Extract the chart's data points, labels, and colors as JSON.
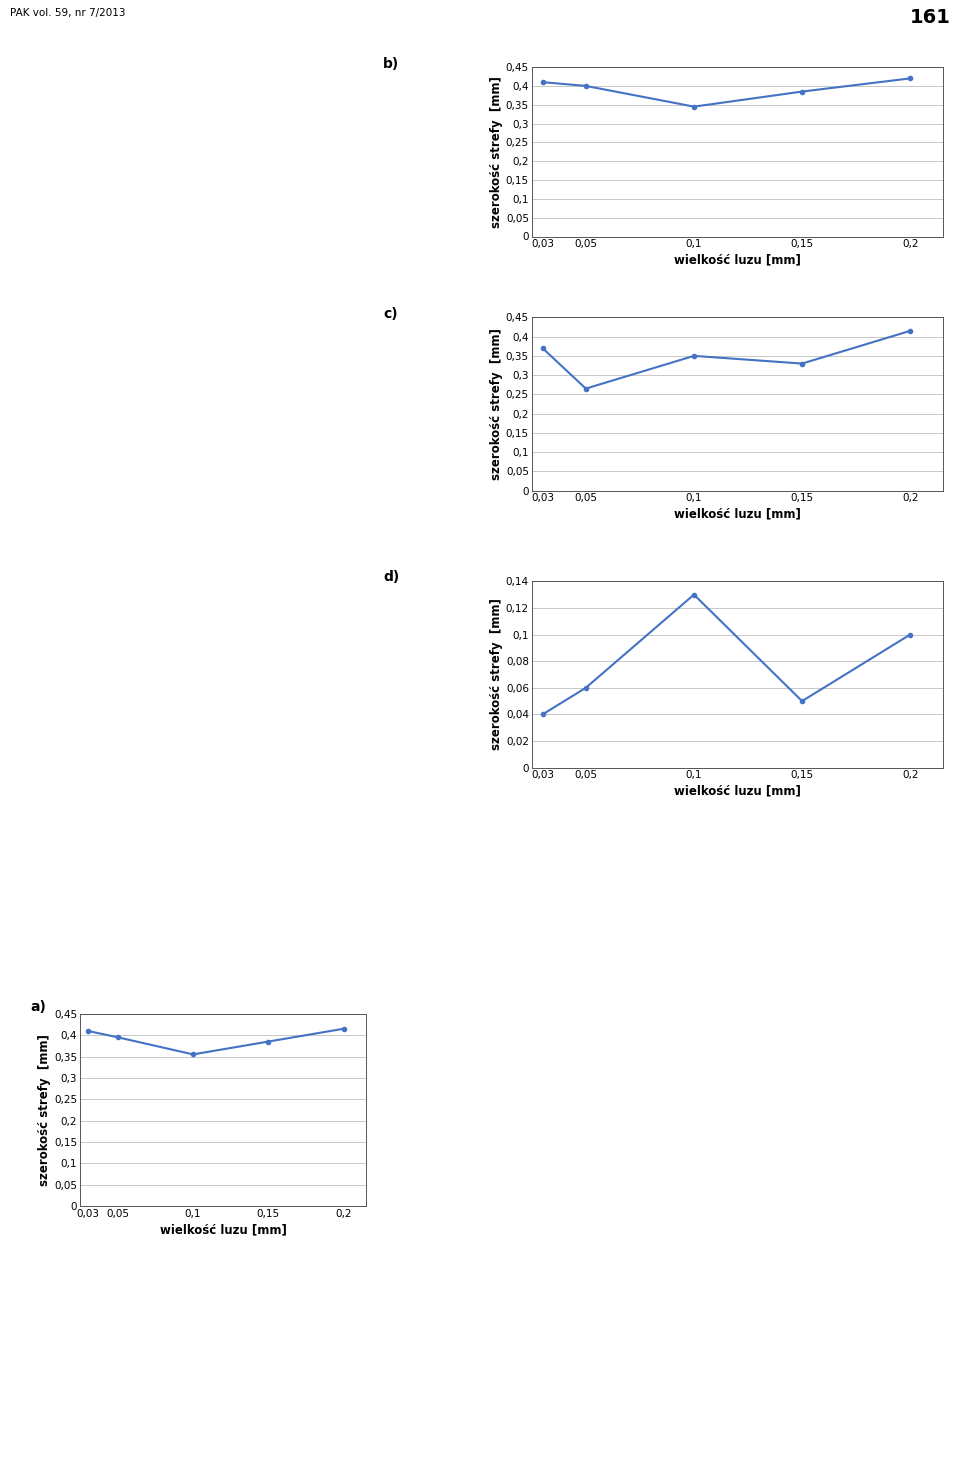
{
  "x_values": [
    0.03,
    0.05,
    0.1,
    0.15,
    0.2
  ],
  "chart_a": {
    "label": "a)",
    "y_values": [
      0.41,
      0.395,
      0.355,
      0.385,
      0.415
    ],
    "ylim": [
      0,
      0.45
    ],
    "yticks": [
      0,
      0.05,
      0.1,
      0.15,
      0.2,
      0.25,
      0.3,
      0.35,
      0.4,
      0.45
    ],
    "ylabel": "szerokość strefy  [mm]",
    "xlabel": "wielkość luzu [mm]"
  },
  "chart_b": {
    "label": "b)",
    "y_values": [
      0.41,
      0.4,
      0.345,
      0.385,
      0.42
    ],
    "ylim": [
      0,
      0.45
    ],
    "yticks": [
      0,
      0.05,
      0.1,
      0.15,
      0.2,
      0.25,
      0.3,
      0.35,
      0.4,
      0.45
    ],
    "ylabel": "szerokość strefy  [mm]",
    "xlabel": "wielkość luzu [mm]"
  },
  "chart_c": {
    "label": "c)",
    "y_values": [
      0.37,
      0.265,
      0.35,
      0.33,
      0.415
    ],
    "ylim": [
      0,
      0.45
    ],
    "yticks": [
      0,
      0.05,
      0.1,
      0.15,
      0.2,
      0.25,
      0.3,
      0.35,
      0.4,
      0.45
    ],
    "ylabel": "szerokość strefy  [mm]",
    "xlabel": "wielkość luzu [mm]"
  },
  "chart_d": {
    "label": "d)",
    "y_values": [
      0.04,
      0.06,
      0.13,
      0.05,
      0.1
    ],
    "ylim": [
      0,
      0.14
    ],
    "yticks": [
      0,
      0.02,
      0.04,
      0.06,
      0.08,
      0.1,
      0.12,
      0.14
    ],
    "ylabel": "szerokość strefy  [mm]",
    "xlabel": "wielkość luzu [mm]"
  },
  "line_color": "#4472c4",
  "line_width": 1.5,
  "marker_size": 3,
  "grid_color": "#c8c8c8",
  "bg_color": "#ffffff",
  "tick_fontsize": 7.5,
  "axis_label_fontsize": 8.5,
  "label_fontsize": 10,
  "page_header": "PAK vol. 59, nr 7/2013",
  "page_number": "161"
}
